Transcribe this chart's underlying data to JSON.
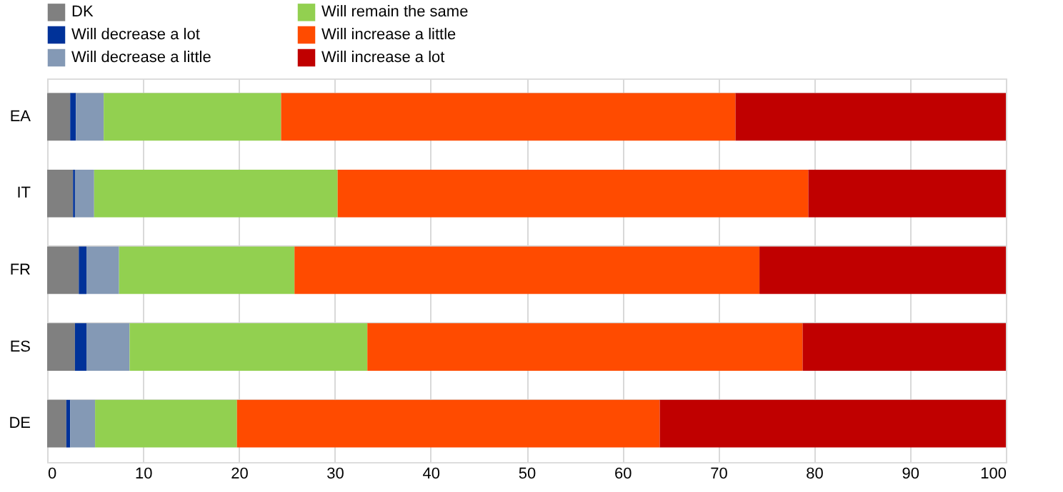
{
  "chart_data": {
    "type": "bar",
    "orientation": "horizontal",
    "stacked": true,
    "categories": [
      "EA",
      "IT",
      "FR",
      "ES",
      "DE"
    ],
    "series": [
      {
        "name": "DK",
        "color": "#808080",
        "values": [
          2.4,
          2.7,
          3.3,
          2.9,
          2.0
        ]
      },
      {
        "name": "Will decrease a lot",
        "color": "#003299",
        "values": [
          0.6,
          0.2,
          0.8,
          1.2,
          0.4
        ]
      },
      {
        "name": "Will decrease a little",
        "color": "#8499b5",
        "values": [
          2.9,
          2.0,
          3.4,
          4.5,
          2.6
        ]
      },
      {
        "name": "Will remain the same",
        "color": "#92d050",
        "values": [
          18.5,
          25.4,
          18.3,
          24.8,
          14.8
        ]
      },
      {
        "name": "Will increase a little",
        "color": "#ff4b00",
        "values": [
          47.4,
          49.1,
          48.5,
          45.4,
          44.1
        ]
      },
      {
        "name": "Will increase a lot",
        "color": "#c00000",
        "values": [
          28.2,
          20.6,
          25.7,
          21.2,
          36.1
        ]
      }
    ],
    "xlim": [
      0,
      100
    ],
    "xticks": [
      0,
      10,
      20,
      30,
      40,
      50,
      60,
      70,
      80,
      90,
      100
    ],
    "grid": true,
    "legend": "top"
  }
}
